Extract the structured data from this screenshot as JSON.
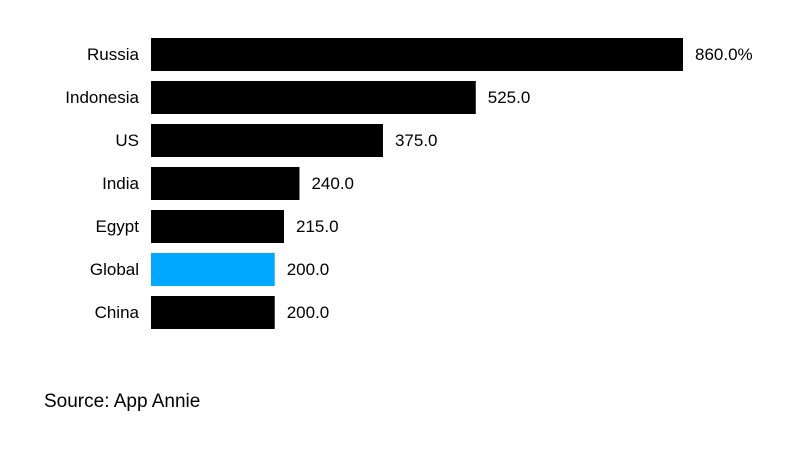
{
  "chart_data": {
    "type": "bar",
    "orientation": "horizontal",
    "categories": [
      "Russia",
      "Indonesia",
      "US",
      "India",
      "Egypt",
      "Global",
      "China"
    ],
    "values": [
      860.0,
      525.0,
      375.0,
      240.0,
      215.0,
      200.0,
      200.0
    ],
    "value_labels": [
      "860.0%",
      "525.0",
      "375.0",
      "240.0",
      "215.0",
      "200.0",
      "200.0"
    ],
    "unit": "%",
    "xlim": [
      0,
      860
    ],
    "grid": false,
    "legend": "none",
    "colors": {
      "default": "#000000",
      "highlight": "#00a8ff",
      "highlight_category": "Global"
    }
  },
  "source": "Source: App Annie"
}
